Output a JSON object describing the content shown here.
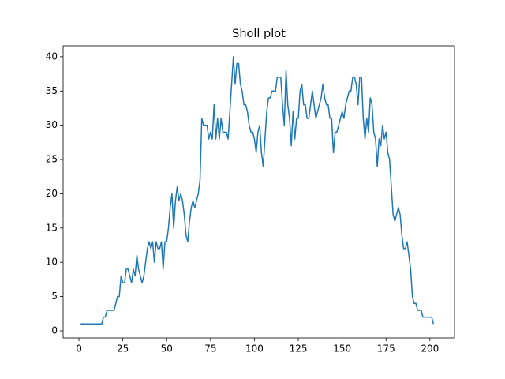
{
  "chart_data": {
    "type": "line",
    "title": "Sholl plot",
    "color": "#1f77b4",
    "x": [
      1,
      2,
      3,
      4,
      5,
      6,
      7,
      8,
      9,
      10,
      11,
      12,
      13,
      14,
      15,
      16,
      17,
      18,
      19,
      20,
      21,
      22,
      23,
      24,
      25,
      26,
      27,
      28,
      29,
      30,
      31,
      32,
      33,
      34,
      35,
      36,
      37,
      38,
      39,
      40,
      41,
      42,
      43,
      44,
      45,
      46,
      47,
      48,
      49,
      50,
      51,
      52,
      53,
      54,
      55,
      56,
      57,
      58,
      59,
      60,
      61,
      62,
      63,
      64,
      65,
      66,
      67,
      68,
      69,
      70,
      71,
      72,
      73,
      74,
      75,
      76,
      77,
      78,
      79,
      80,
      81,
      82,
      83,
      84,
      85,
      86,
      87,
      88,
      89,
      90,
      91,
      92,
      93,
      94,
      95,
      96,
      97,
      98,
      99,
      100,
      101,
      102,
      103,
      104,
      105,
      106,
      107,
      108,
      109,
      110,
      111,
      112,
      113,
      114,
      115,
      116,
      117,
      118,
      119,
      120,
      121,
      122,
      123,
      124,
      125,
      126,
      127,
      128,
      129,
      130,
      131,
      132,
      133,
      134,
      135,
      136,
      137,
      138,
      139,
      140,
      141,
      142,
      143,
      144,
      145,
      146,
      147,
      148,
      149,
      150,
      151,
      152,
      153,
      154,
      155,
      156,
      157,
      158,
      159,
      160,
      161,
      162,
      163,
      164,
      165,
      166,
      167,
      168,
      169,
      170,
      171,
      172,
      173,
      174,
      175,
      176,
      177,
      178,
      179,
      180,
      181,
      182,
      183,
      184,
      185,
      186,
      187,
      188,
      189,
      190,
      191,
      192,
      193,
      194,
      195,
      196,
      197,
      198,
      199,
      200,
      201,
      202
    ],
    "values": [
      1,
      1,
      1,
      1,
      1,
      1,
      1,
      1,
      1,
      1,
      1,
      1,
      1,
      2,
      2,
      3,
      3,
      3,
      3,
      3,
      4,
      5,
      5,
      8,
      7,
      7,
      9,
      9,
      8,
      7,
      9,
      8,
      11,
      9,
      8,
      7,
      8,
      10,
      12,
      13,
      12,
      13,
      10,
      13,
      12,
      12,
      13,
      9,
      13,
      13,
      15,
      18,
      20,
      15,
      19,
      21,
      19,
      20,
      19,
      17,
      14,
      13,
      16,
      18,
      19,
      18,
      19,
      20,
      22,
      31,
      30,
      30,
      30,
      28,
      29,
      28,
      33,
      28,
      31,
      28,
      31,
      29,
      29,
      29,
      28,
      32,
      36,
      40,
      36,
      39,
      39,
      36,
      35,
      33,
      33,
      32,
      30,
      29,
      29,
      28,
      26,
      29,
      30,
      26,
      24,
      28,
      32,
      34,
      34,
      35,
      35,
      35,
      37,
      37,
      37,
      33,
      30,
      38,
      33,
      31,
      27,
      32,
      28,
      31,
      31,
      35,
      36,
      33,
      33,
      31,
      31,
      33,
      35,
      33,
      31,
      32,
      33,
      34,
      36,
      34,
      33,
      33,
      31,
      31,
      26,
      29,
      29,
      30,
      31,
      32,
      31,
      33,
      34,
      35,
      35,
      37,
      37,
      36,
      33,
      37,
      37,
      31,
      28,
      31,
      29,
      34,
      33,
      29,
      28,
      24,
      28,
      27,
      30,
      28,
      29,
      26,
      25,
      21,
      17,
      16,
      17,
      18,
      17,
      14,
      12,
      12,
      13,
      11,
      9,
      5,
      4,
      4,
      3,
      3,
      3,
      2,
      2,
      2,
      2,
      2,
      2,
      1
    ],
    "xlim": [
      -9,
      214
    ],
    "ylim": [
      -1.04,
      41.6
    ],
    "xticks": [
      0,
      25,
      50,
      75,
      100,
      125,
      150,
      175,
      200
    ],
    "yticks": [
      0,
      5,
      10,
      15,
      20,
      25,
      30,
      35,
      40
    ]
  }
}
